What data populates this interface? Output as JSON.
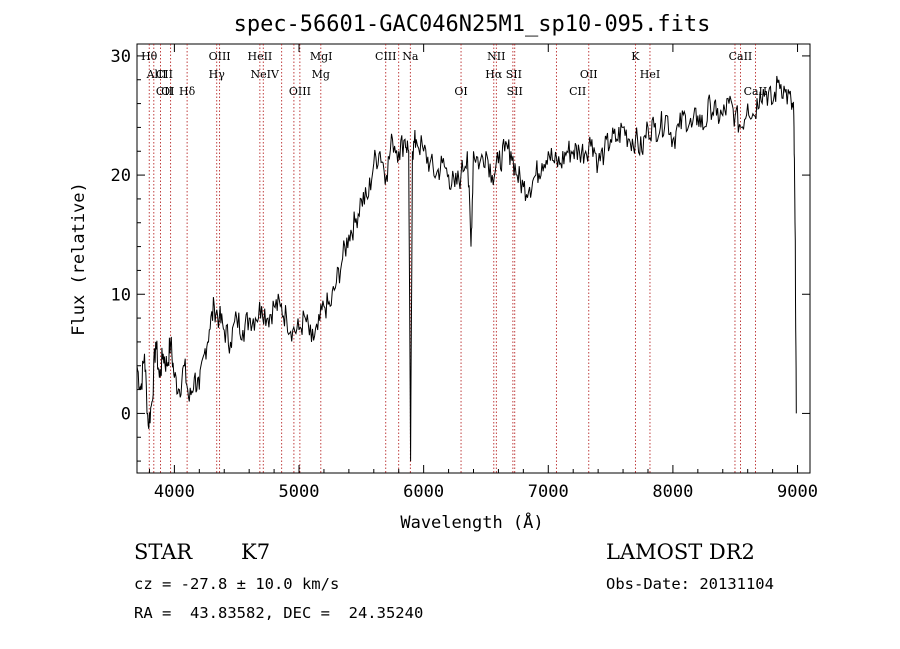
{
  "chart_data": {
    "type": "line",
    "title": "spec-56601-GAC046N25M1_sp10-095.fits",
    "xlabel": "Wavelength (Å)",
    "ylabel": "Flux (relative)",
    "xlim": [
      3700,
      9100
    ],
    "ylim": [
      -5,
      31
    ],
    "xticks": [
      4000,
      5000,
      6000,
      7000,
      8000,
      9000
    ],
    "yticks": [
      0,
      10,
      20,
      30
    ],
    "grid": false,
    "series": [
      {
        "x": [
          3700,
          3730,
          3760,
          3790,
          3820,
          3850,
          3880,
          3910,
          3940,
          3970,
          4000,
          4040,
          4080,
          4120,
          4160,
          4200,
          4240,
          4280,
          4320,
          4360,
          4400,
          4450,
          4500,
          4550,
          4600,
          4650,
          4700,
          4750,
          4800,
          4850,
          4900,
          4950,
          5000,
          5050,
          5100,
          5150,
          5200,
          5250,
          5300,
          5350,
          5400,
          5450,
          5500,
          5550,
          5600,
          5650,
          5700,
          5750,
          5800,
          5850,
          5880,
          5895,
          5910,
          5940,
          6000,
          6050,
          6100,
          6150,
          6200,
          6250,
          6300,
          6350,
          6380,
          6400,
          6450,
          6500,
          6550,
          6600,
          6650,
          6700,
          6750,
          6800,
          6850,
          6900,
          6950,
          7000,
          7050,
          7100,
          7150,
          7200,
          7250,
          7300,
          7350,
          7400,
          7450,
          7500,
          7550,
          7600,
          7650,
          7700,
          7750,
          7800,
          7850,
          7900,
          7950,
          8000,
          8050,
          8100,
          8150,
          8200,
          8250,
          8300,
          8350,
          8400,
          8450,
          8500,
          8550,
          8600,
          8650,
          8700,
          8750,
          8800,
          8850,
          8900,
          8950,
          8970,
          8980,
          8990
        ],
        "y": [
          4,
          2,
          5,
          -1,
          1,
          6,
          3,
          5,
          4,
          6,
          3,
          2,
          4,
          1,
          3,
          2,
          5,
          7,
          9,
          8,
          7,
          6,
          8,
          7,
          8,
          8,
          9,
          8,
          9,
          9,
          8,
          7,
          7,
          8,
          6,
          7,
          9,
          9,
          11,
          13,
          15,
          16,
          18,
          18,
          21,
          22,
          20,
          23,
          22,
          23,
          22,
          -4,
          22,
          23,
          22,
          21,
          20,
          21,
          20,
          19,
          20,
          22,
          14,
          22,
          21,
          22,
          20,
          21,
          22,
          22,
          20,
          19,
          19,
          20,
          21,
          22,
          21,
          21,
          22,
          22,
          22,
          22,
          23,
          21,
          22,
          23,
          23,
          24,
          23,
          23,
          22,
          24,
          24,
          24,
          25,
          23,
          24,
          25,
          24,
          25,
          24,
          26,
          25,
          25,
          26,
          25,
          24,
          26,
          25,
          27,
          27,
          26,
          28,
          27,
          26,
          25,
          16,
          0
        ]
      }
    ],
    "lines": [
      {
        "label": "Hθ",
        "wl": 3798,
        "row": 0
      },
      {
        "label": "AlII",
        "wl": 3858,
        "row": 1
      },
      {
        "label": "CII",
        "wl": 3920,
        "row": 1
      },
      {
        "label": "OIII",
        "wl": 4363,
        "row": 0
      },
      {
        "label": "Hγ",
        "wl": 4340,
        "row": 1
      },
      {
        "label": "HeII",
        "wl": 4686,
        "row": 0
      },
      {
        "label": "NeIV",
        "wl": 4725,
        "row": 1
      },
      {
        "label": "Mg",
        "wl": 5175,
        "row": 1
      },
      {
        "label": "MgI",
        "wl": 5178,
        "row": 0
      },
      {
        "label": "CIII",
        "wl": 5696,
        "row": 0
      },
      {
        "label": "Na",
        "wl": 5893,
        "row": 0
      },
      {
        "label": "NII",
        "wl": 6583,
        "row": 0
      },
      {
        "label": "Hα",
        "wl": 6563,
        "row": 1
      },
      {
        "label": "SII",
        "wl": 6724,
        "row": 1
      },
      {
        "label": "OII",
        "wl": 7325,
        "row": 1
      },
      {
        "label": "K",
        "wl": 7699,
        "row": 0
      },
      {
        "label": "HeI",
        "wl": 7816,
        "row": 1
      },
      {
        "label": "CaII",
        "wl": 8542,
        "row": 0
      },
      {
        "label": "CII",
        "wl": 3920,
        "row": 2
      },
      {
        "label": "Hδ",
        "wl": 4102,
        "row": 2
      },
      {
        "label": "OI",
        "wl": 3947,
        "row": 2
      },
      {
        "label": "OIII",
        "wl": 5007,
        "row": 2
      },
      {
        "label": "OI",
        "wl": 6300,
        "row": 2
      },
      {
        "label": "SII",
        "wl": 6731,
        "row": 2
      },
      {
        "label": "CII",
        "wl": 7236,
        "row": 2
      },
      {
        "label": "CaII",
        "wl": 8662,
        "row": 2
      }
    ],
    "vlines": [
      3798,
      3835,
      3889,
      3970,
      4102,
      4340,
      4363,
      4686,
      4713,
      4861,
      4959,
      5007,
      5175,
      5696,
      5800,
      5893,
      6300,
      6563,
      6583,
      6716,
      6731,
      7065,
      7325,
      7699,
      7816,
      8498,
      8542,
      8662
    ]
  },
  "info": {
    "class": "STAR",
    "subclass": "K7",
    "survey": "LAMOST DR2",
    "cz": "cz = -27.8 ± 10.0 km/s",
    "obs_date": "Obs-Date: 20131104",
    "radec": "RA =  43.83582, DEC =  24.35240"
  }
}
